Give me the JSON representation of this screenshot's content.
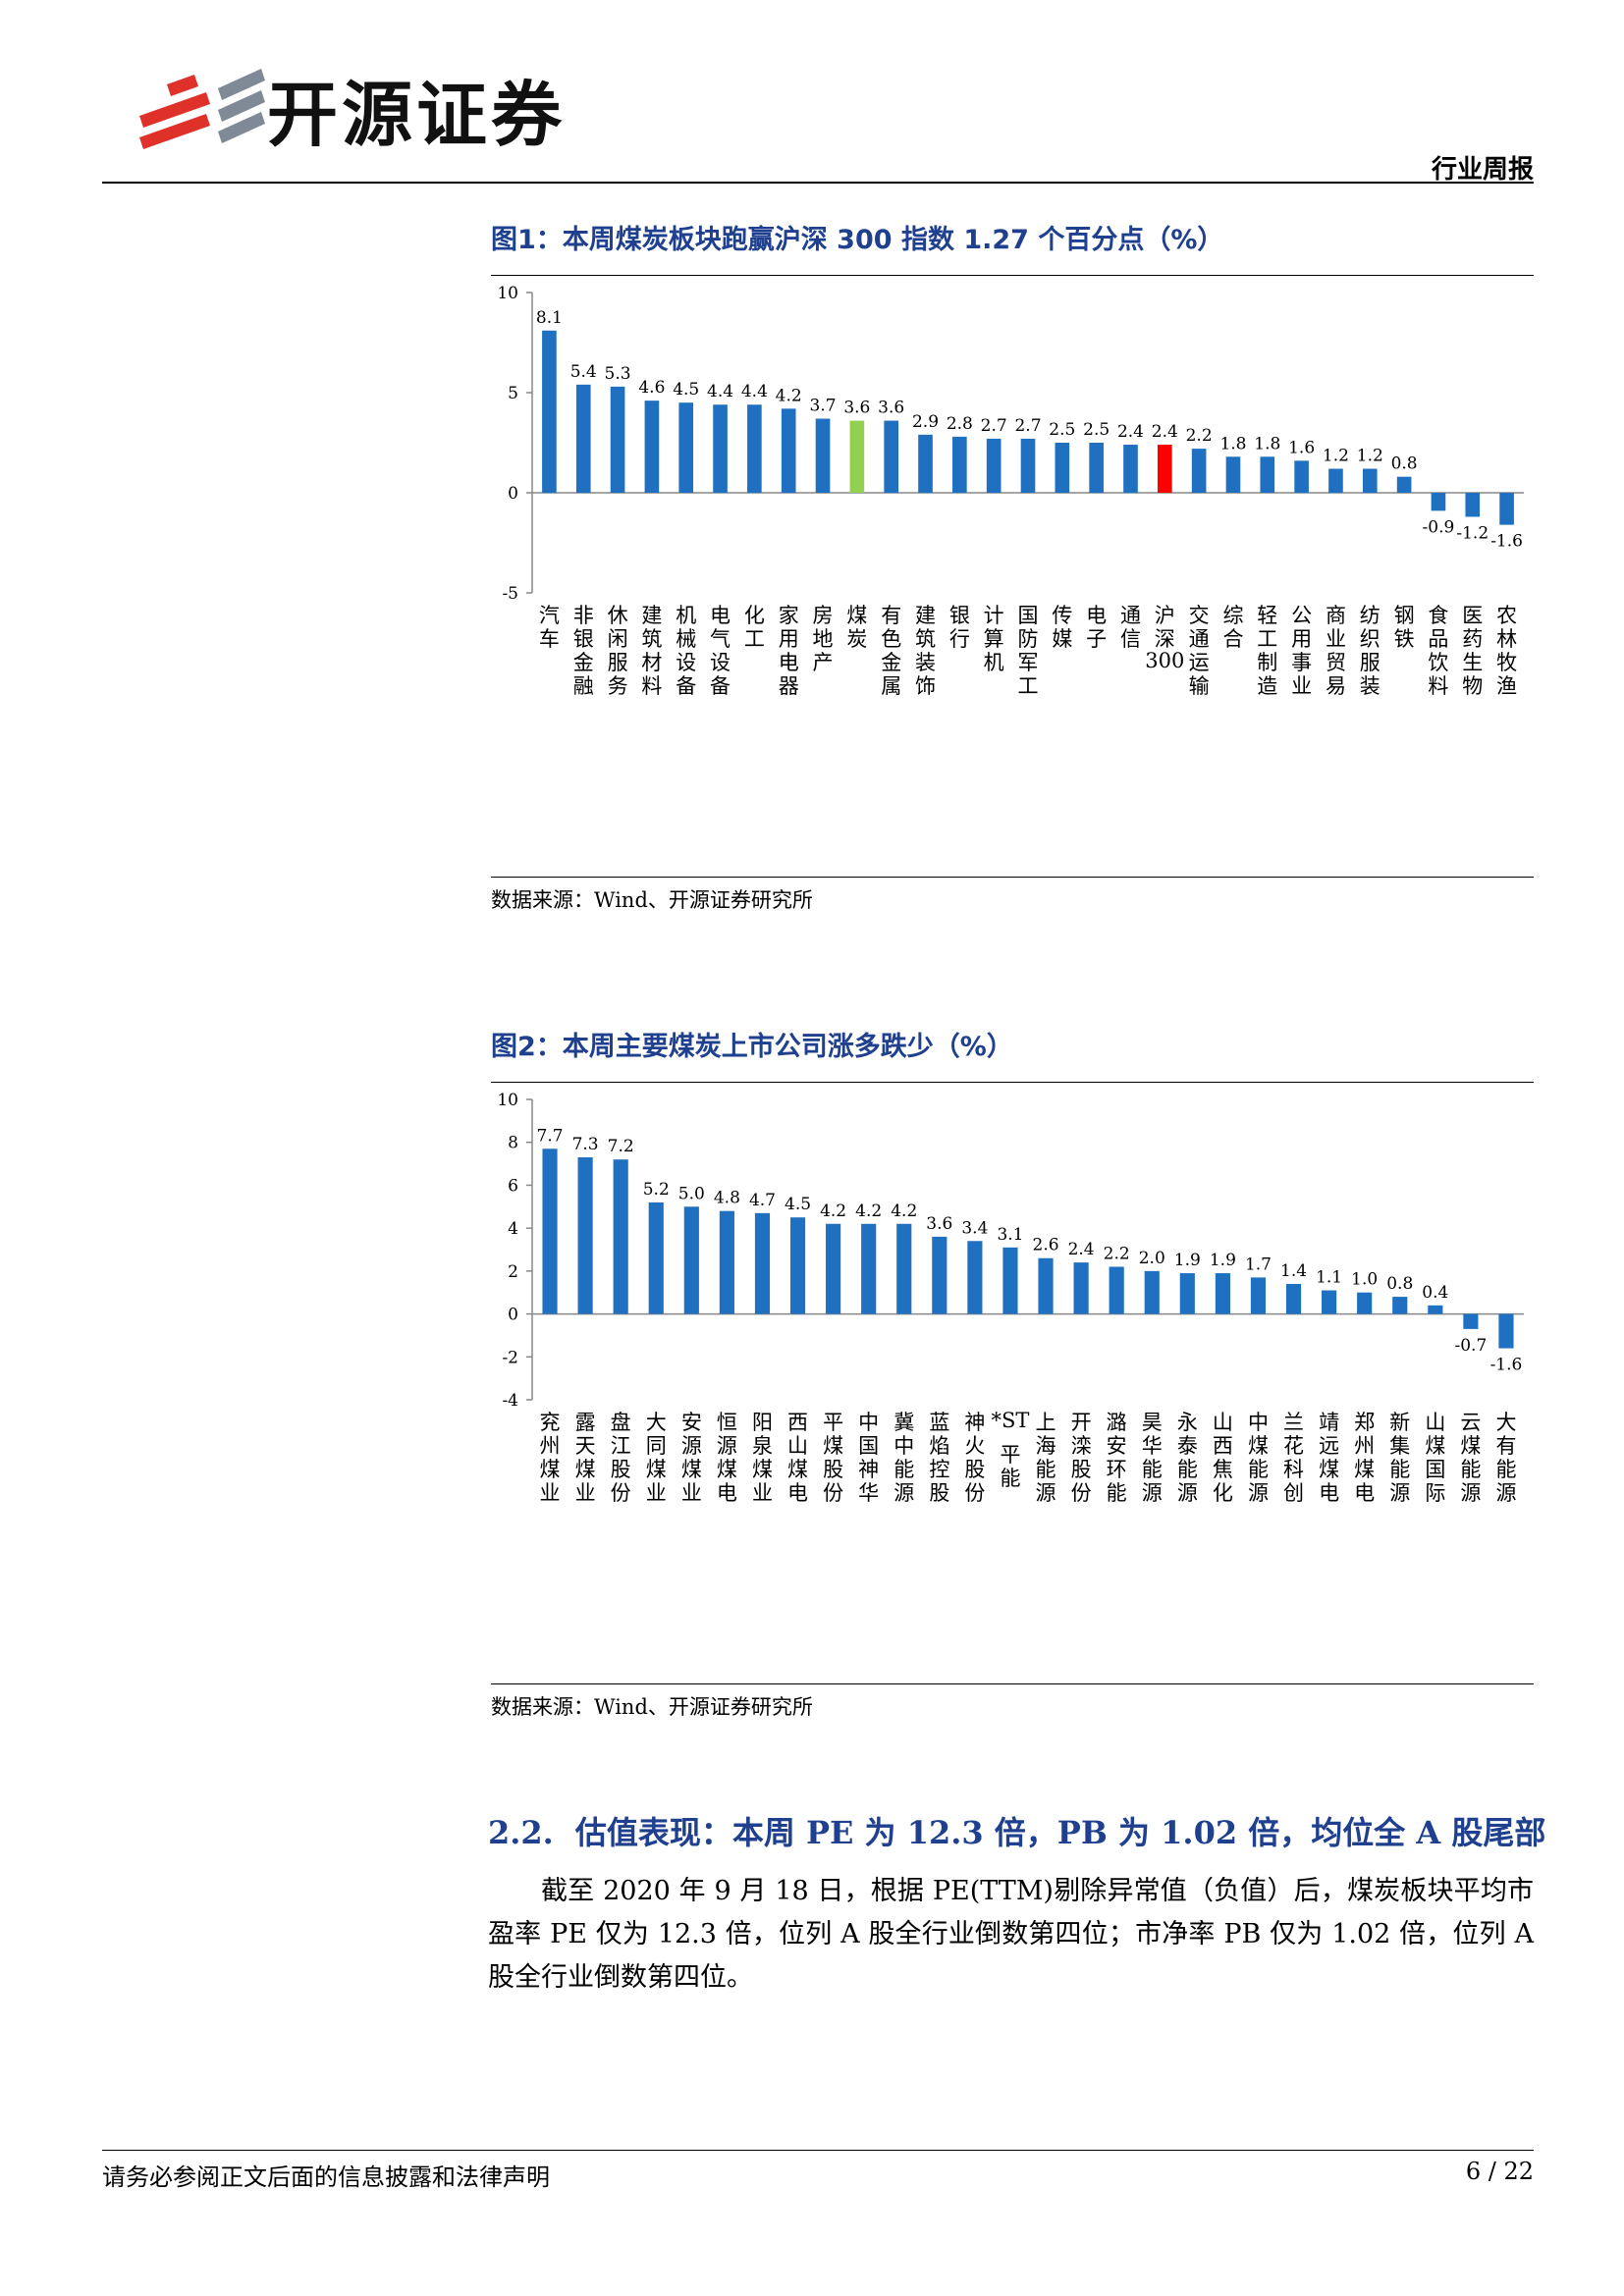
{
  "header": {
    "brand": "开源证券",
    "report_type": "行业周报"
  },
  "figures": [
    {
      "title": "图1：本周煤炭板块跑赢沪深 300 指数 1.27 个百分点（%）",
      "source": "数据来源：Wind、开源证券研究所"
    },
    {
      "title": "图2：本周主要煤炭上市公司涨多跌少（%）",
      "source": "数据来源：Wind、开源证券研究所"
    }
  ],
  "chart_data": [
    {
      "type": "bar",
      "title": "图1：本周煤炭板块跑赢沪深 300 指数 1.27 个百分点（%）",
      "categories": [
        "汽车",
        "非银金融",
        "休闲服务",
        "建筑材料",
        "机械设备",
        "电气设备",
        "化工",
        "家用电器",
        "房地产",
        "煤炭",
        "有色金属",
        "建筑装饰",
        "银行",
        "计算机",
        "国防军工",
        "传媒",
        "电子",
        "通信",
        "沪深300",
        "交通运输",
        "综合",
        "轻工制造",
        "公用事业",
        "商业贸易",
        "纺织服装",
        "钢铁",
        "食品饮料",
        "医药生物",
        "农林牧渔"
      ],
      "values": [
        8.1,
        5.4,
        5.3,
        4.6,
        4.5,
        4.4,
        4.4,
        4.2,
        3.7,
        3.6,
        3.6,
        2.9,
        2.8,
        2.7,
        2.7,
        2.5,
        2.5,
        2.4,
        2.4,
        2.2,
        1.8,
        1.8,
        1.6,
        1.2,
        1.2,
        0.8,
        -0.9,
        -1.2,
        -1.6
      ],
      "ylim": [
        -5,
        10
      ],
      "yticks": [
        -5,
        0,
        5,
        10
      ],
      "grid": false,
      "colors": {
        "default": "#1f70c1",
        "highlight_coal": "#92d050",
        "highlight_index": "#ff0000"
      },
      "highlight": {
        "煤炭": "highlight_coal",
        "沪深300": "highlight_index"
      }
    },
    {
      "type": "bar",
      "title": "图2：本周主要煤炭上市公司涨多跌少（%）",
      "categories": [
        "兖州煤业",
        "露天煤业",
        "盘江股份",
        "大同煤业",
        "安源煤业",
        "恒源煤电",
        "阳泉煤业",
        "西山煤电",
        "平煤股份",
        "中国神华",
        "冀中能源",
        "蓝焰控股",
        "神火股份",
        "*ST平能",
        "上海能源",
        "开滦股份",
        "潞安环能",
        "昊华能源",
        "永泰能源",
        "山西焦化",
        "中煤能源",
        "兰花科创",
        "靖远煤电",
        "郑州煤电",
        "新集能源",
        "山煤国际",
        "云煤能源",
        "大有能源"
      ],
      "values": [
        7.7,
        7.3,
        7.2,
        5.2,
        5.0,
        4.8,
        4.7,
        4.5,
        4.2,
        4.2,
        4.2,
        3.6,
        3.4,
        3.1,
        2.6,
        2.4,
        2.2,
        2.0,
        1.9,
        1.9,
        1.7,
        1.4,
        1.1,
        1.0,
        0.8,
        0.4,
        -0.7,
        -1.6
      ],
      "ylim": [
        -4,
        10
      ],
      "yticks": [
        -4,
        -2,
        0,
        2,
        4,
        6,
        8,
        10
      ],
      "grid": false,
      "colors": {
        "default": "#1f70c1"
      }
    }
  ],
  "section": {
    "number": "2.2.",
    "title": "估值表现：本周 PE 为 12.3 倍，PB 为 1.02 倍，均位全 A 股尾部",
    "paragraph": "截至 2020 年 9 月 18 日，根据 PE(TTM)剔除异常值（负值）后，煤炭板块平均市盈率 PE 仅为 12.3 倍，位列 A 股全行业倒数第四位；市净率 PB 仅为 1.02 倍，位列 A 股全行业倒数第四位。"
  },
  "footer": {
    "disclaimer": "请务必参阅正文后面的信息披露和法律声明",
    "page": "6 / 22"
  }
}
